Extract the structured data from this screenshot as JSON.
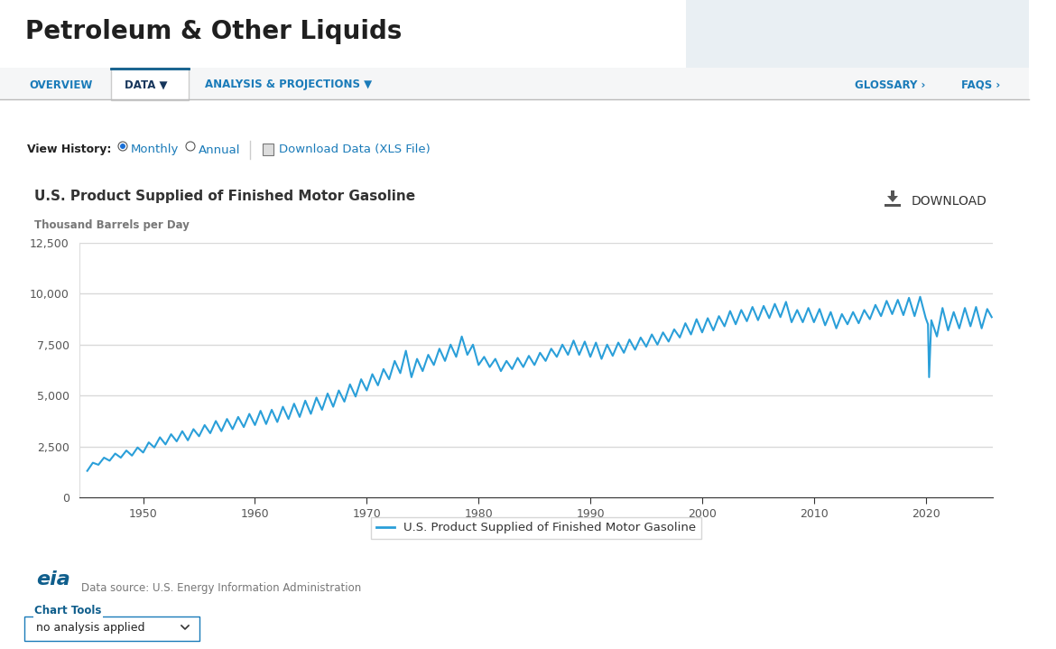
{
  "page": {
    "header": {
      "title": "Petroleum & Other Liquids"
    },
    "nav": {
      "tabs": [
        "OVERVIEW",
        "DATA ▼",
        "ANALYSIS & PROJECTIONS ▼"
      ],
      "links": [
        "GLOSSARY ›",
        "FAQS ›"
      ]
    },
    "view_history": {
      "label": "View History:",
      "options": [
        "Monthly",
        "Annual"
      ],
      "selected": "Monthly",
      "download": "Download Data (XLS File)"
    },
    "chart_download": "DOWNLOAD",
    "source": {
      "logo": "eia",
      "text": "Data source: U.S. Energy Information Administration"
    },
    "chart_tools": {
      "label": "Chart Tools",
      "value": "no analysis applied"
    }
  },
  "chart_data": {
    "type": "line",
    "title": "U.S. Product Supplied of Finished Motor Gasoline",
    "y_label": "Thousand Barrels per Day",
    "x": [
      1945,
      1945.5,
      1946,
      1946.5,
      1947,
      1947.5,
      1948,
      1948.5,
      1949,
      1949.5,
      1950,
      1950.5,
      1951,
      1951.5,
      1952,
      1952.5,
      1953,
      1953.5,
      1954,
      1954.5,
      1955,
      1955.5,
      1956,
      1956.5,
      1957,
      1957.5,
      1958,
      1958.5,
      1959,
      1959.5,
      1960,
      1960.5,
      1961,
      1961.5,
      1962,
      1962.5,
      1963,
      1963.5,
      1964,
      1964.5,
      1965,
      1965.5,
      1966,
      1966.5,
      1967,
      1967.5,
      1968,
      1968.5,
      1969,
      1969.5,
      1970,
      1970.5,
      1971,
      1971.5,
      1972,
      1972.5,
      1973,
      1973.5,
      1974,
      1974.5,
      1975,
      1975.5,
      1976,
      1976.5,
      1977,
      1977.5,
      1978,
      1978.5,
      1979,
      1979.5,
      1980,
      1980.5,
      1981,
      1981.5,
      1982,
      1982.5,
      1983,
      1983.5,
      1984,
      1984.5,
      1985,
      1985.5,
      1986,
      1986.5,
      1987,
      1987.5,
      1988,
      1988.5,
      1989,
      1989.5,
      1990,
      1990.5,
      1991,
      1991.5,
      1992,
      1992.5,
      1993,
      1993.5,
      1994,
      1994.5,
      1995,
      1995.5,
      1996,
      1996.5,
      1997,
      1997.5,
      1998,
      1998.5,
      1999,
      1999.5,
      2000,
      2000.5,
      2001,
      2001.5,
      2002,
      2002.5,
      2003,
      2003.5,
      2004,
      2004.5,
      2005,
      2005.5,
      2006,
      2006.5,
      2007,
      2007.5,
      2008,
      2008.5,
      2009,
      2009.5,
      2010,
      2010.5,
      2011,
      2011.5,
      2012,
      2012.5,
      2013,
      2013.5,
      2014,
      2014.5,
      2015,
      2015.5,
      2016,
      2016.5,
      2017,
      2017.5,
      2018,
      2018.5,
      2019,
      2019.5,
      2020,
      2020.2,
      2020.3,
      2020.5,
      2021,
      2021.5,
      2022,
      2022.5,
      2023,
      2023.5,
      2024,
      2024.5,
      2025,
      2025.5,
      2025.9
    ],
    "series": [
      {
        "name": "U.S. Product Supplied of Finished Motor Gasoline",
        "color": "#2a9fd9",
        "values": [
          1300,
          1700,
          1600,
          1950,
          1800,
          2150,
          1950,
          2300,
          2050,
          2450,
          2200,
          2700,
          2450,
          2950,
          2600,
          3100,
          2750,
          3250,
          2800,
          3350,
          3000,
          3550,
          3150,
          3750,
          3250,
          3850,
          3350,
          3950,
          3450,
          4100,
          3550,
          4250,
          3600,
          4300,
          3700,
          4450,
          3850,
          4600,
          3950,
          4750,
          4100,
          4900,
          4300,
          5100,
          4450,
          5250,
          4700,
          5550,
          4950,
          5800,
          5250,
          6050,
          5500,
          6300,
          5800,
          6700,
          6100,
          7200,
          5900,
          6800,
          6200,
          7000,
          6500,
          7300,
          6700,
          7500,
          6900,
          7900,
          7000,
          7500,
          6500,
          6900,
          6400,
          6800,
          6200,
          6700,
          6300,
          6850,
          6400,
          6950,
          6500,
          7100,
          6700,
          7300,
          6900,
          7500,
          7000,
          7700,
          7000,
          7650,
          6900,
          7600,
          6800,
          7500,
          6950,
          7600,
          7100,
          7750,
          7250,
          7850,
          7400,
          8000,
          7500,
          8100,
          7650,
          8250,
          7850,
          8550,
          8000,
          8750,
          8100,
          8800,
          8200,
          8900,
          8400,
          9150,
          8500,
          9200,
          8650,
          9350,
          8700,
          9400,
          8800,
          9500,
          8850,
          9600,
          8600,
          9200,
          8600,
          9300,
          8600,
          9250,
          8450,
          9100,
          8300,
          9000,
          8500,
          9100,
          8550,
          9200,
          8750,
          9450,
          8900,
          9650,
          9000,
          9700,
          8950,
          9800,
          8900,
          9850,
          8800,
          8500,
          5900,
          8700,
          7900,
          9300,
          8200,
          9100,
          8300,
          9300,
          8400,
          9350,
          8300,
          9250,
          8850
        ]
      }
    ],
    "xlim": [
      1944.3,
      2026.0
    ],
    "xticks": [
      1950,
      1960,
      1970,
      1980,
      1990,
      2000,
      2010,
      2020
    ],
    "ylim": [
      0,
      12500
    ],
    "yticks": [
      0,
      {
        "value": 2500,
        "label": "2,500"
      },
      {
        "value": 5000,
        "label": "5,000"
      },
      {
        "value": 7500,
        "label": "7,500"
      },
      {
        "value": 10000,
        "label": "10,000"
      },
      {
        "value": 12500,
        "label": "12,500"
      }
    ],
    "grid": "y",
    "legend": "lower center"
  }
}
